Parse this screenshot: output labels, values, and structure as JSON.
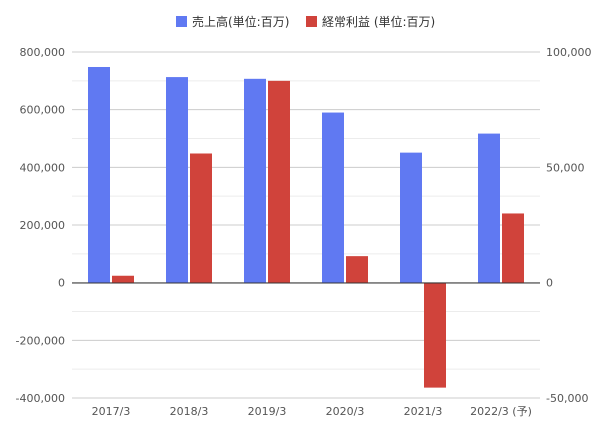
{
  "chart_data": {
    "type": "bar",
    "categories": [
      "2017/3",
      "2018/3",
      "2019/3",
      "2020/3",
      "2021/3",
      "2022/3 (予)"
    ],
    "series": [
      {
        "name": "売上高(単位:百万)",
        "axis": "left",
        "color": "#6079f2",
        "values": [
          748000,
          713000,
          707000,
          590000,
          451000,
          517000
        ]
      },
      {
        "name": "経常利益 (単位:百万)",
        "axis": "right",
        "color": "#d0433b",
        "values": [
          3000,
          56000,
          87500,
          11500,
          -45500,
          30000
        ]
      }
    ],
    "y_left": {
      "ylim": [
        -400000,
        800000
      ],
      "ticks": [
        800000,
        600000,
        400000,
        200000,
        0,
        -200000,
        -400000
      ],
      "tick_labels": [
        "800,000",
        "600,000",
        "400,000",
        "200,000",
        "0",
        "-200,000",
        "-400,000"
      ]
    },
    "y_right": {
      "ylim": [
        -50000,
        100000
      ],
      "ticks": [
        100000,
        50000,
        0,
        -50000
      ],
      "tick_labels": [
        "100,000",
        "50,000",
        "0",
        "-50,000"
      ]
    },
    "grid": true,
    "legend": "top-center"
  }
}
